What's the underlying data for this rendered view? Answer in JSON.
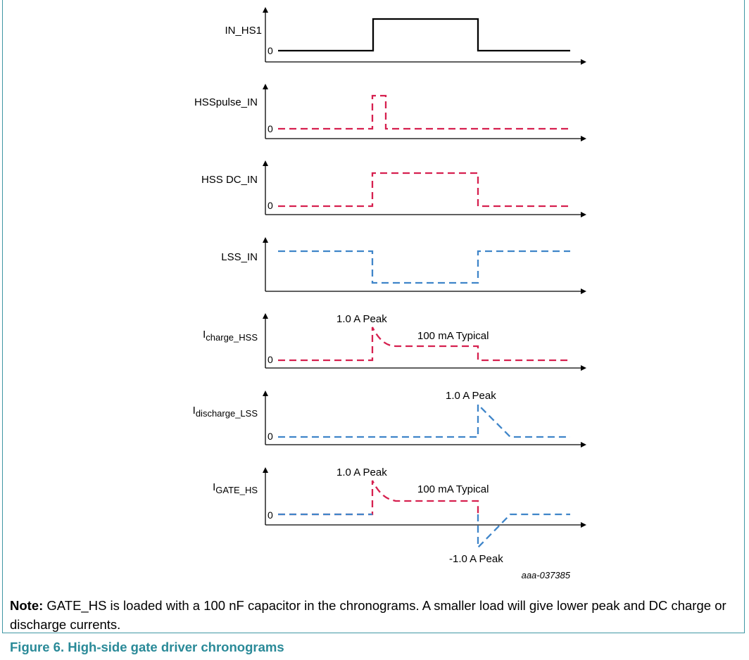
{
  "signals": [
    {
      "label": "IN_HS1",
      "zero": "0"
    },
    {
      "label": "HSSpulse_IN",
      "zero": "0"
    },
    {
      "label": "HSS DC_IN",
      "zero": "0"
    },
    {
      "label": "LSS_IN"
    },
    {
      "label_main": "I",
      "label_sub": "charge_HSS",
      "zero": "0"
    },
    {
      "label_main": "I",
      "label_sub": "discharge_LSS",
      "zero": "0"
    },
    {
      "label_main": "I",
      "label_sub": "GATE_HS",
      "zero": "0"
    }
  ],
  "annotations": {
    "charge_peak": "1.0 A Peak",
    "charge_typical": "100 mA Typical",
    "discharge_peak": "1.0 A Peak",
    "gate_peak": "1.0 A Peak",
    "gate_typical": "100 mA Typical",
    "gate_neg_peak": "-1.0 A Peak"
  },
  "figure_code": "aaa-037385",
  "note": {
    "label": "Note:",
    "text": " GATE_HS is loaded with a 100 nF capacitor in the chronograms. A smaller load will give lower peak and DC charge or discharge currents."
  },
  "caption": "Figure 6.  High-side gate driver chronograms",
  "colors": {
    "frame": "#3f97a4",
    "caption": "#2a8a98",
    "hs_dashed": "#d6204f",
    "ls_dashed": "#3f85c9",
    "solid": "#000000"
  }
}
